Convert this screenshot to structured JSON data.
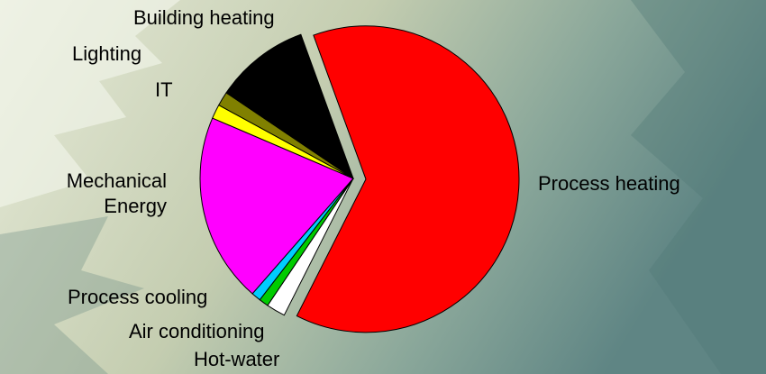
{
  "chart_data": {
    "type": "pie",
    "categories": [
      "Process heating",
      "Hot-water",
      "Air conditioning",
      "Process cooling",
      "Mechanical Energy",
      "IT",
      "Lighting",
      "Building heating"
    ],
    "values": [
      63,
      2,
      1,
      1,
      20,
      1.5,
      1.5,
      10
    ],
    "colors": [
      "#ff0000",
      "#ffffff",
      "#00cc00",
      "#00ccff",
      "#ff00ff",
      "#ffff00",
      "#808000",
      "#000000"
    ]
  }
}
